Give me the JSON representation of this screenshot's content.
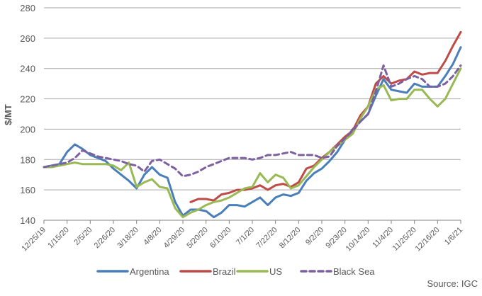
{
  "chart_data": {
    "type": "line",
    "title": "",
    "xlabel": "",
    "ylabel": "$/MT",
    "ylim": [
      140,
      280
    ],
    "yticks": [
      140,
      160,
      180,
      200,
      220,
      240,
      260,
      280
    ],
    "x_unit": "weeks since 12/25/19",
    "xticks": [
      "12/25/19",
      "1/15/20",
      "2/5/20",
      "2/26/20",
      "3/18/20",
      "4/8/20",
      "4/29/20",
      "5/20/20",
      "6/10/20",
      "7/1/20",
      "7/22/20",
      "8/12/20",
      "9/2/20",
      "9/23/20",
      "10/14/20",
      "11/4/20",
      "11/25/20",
      "12/16/20",
      "1/6/21"
    ],
    "grid": "horizontal",
    "legend_position": "bottom",
    "source": "Source: IGC",
    "series": [
      {
        "name": "Argentina",
        "color": "#4a7ebb",
        "dash": false,
        "start": 0,
        "values": [
          175,
          176,
          177,
          185,
          190,
          187,
          183,
          181,
          179,
          174,
          170,
          166,
          161,
          170,
          175,
          170,
          168,
          152,
          143,
          147,
          147,
          146,
          142,
          145,
          150,
          150,
          149,
          152,
          155,
          150,
          155,
          157,
          156,
          158,
          166,
          171,
          174,
          179,
          185,
          193,
          200,
          205,
          210,
          222,
          233,
          226,
          225,
          224,
          230,
          228,
          228,
          228,
          235,
          243,
          254
        ]
      },
      {
        "name": "Brazil",
        "color": "#be4b48",
        "dash": false,
        "start": 19,
        "values": [
          152,
          154,
          154,
          153,
          157,
          158,
          160,
          160,
          161,
          163,
          160,
          163,
          164,
          162,
          165,
          174,
          176,
          181,
          185,
          190,
          195,
          199,
          209,
          215,
          230,
          235,
          230,
          232,
          233,
          238,
          236,
          237,
          237,
          245,
          255,
          264
        ]
      },
      {
        "name": "US",
        "color": "#98b954",
        "dash": false,
        "start": 0,
        "values": [
          175,
          175,
          176,
          177,
          178,
          177,
          177,
          177,
          177,
          176,
          173,
          178,
          162,
          165,
          167,
          162,
          161,
          148,
          142,
          145,
          147,
          150,
          152,
          153,
          155,
          158,
          161,
          162,
          171,
          165,
          170,
          168,
          161,
          163,
          169,
          175,
          180,
          185,
          189,
          193,
          197,
          207,
          215,
          226,
          229,
          219,
          220,
          220,
          226,
          226,
          220,
          215,
          220,
          230,
          240
        ]
      },
      {
        "name": "Black Sea",
        "color": "#7d60a0",
        "dash": true,
        "start": 0,
        "values": [
          175,
          176,
          177,
          178,
          181,
          186,
          184,
          182,
          181,
          180,
          179,
          177,
          176,
          172,
          179,
          180,
          177,
          174,
          169,
          170,
          172,
          175,
          177,
          179,
          181,
          181,
          181,
          180,
          181,
          183,
          183,
          184,
          185,
          183,
          183,
          183,
          181,
          182,
          189,
          194,
          199,
          205,
          210,
          225,
          242,
          228,
          230,
          233,
          235,
          233,
          228,
          228,
          230,
          235,
          242
        ]
      }
    ]
  }
}
